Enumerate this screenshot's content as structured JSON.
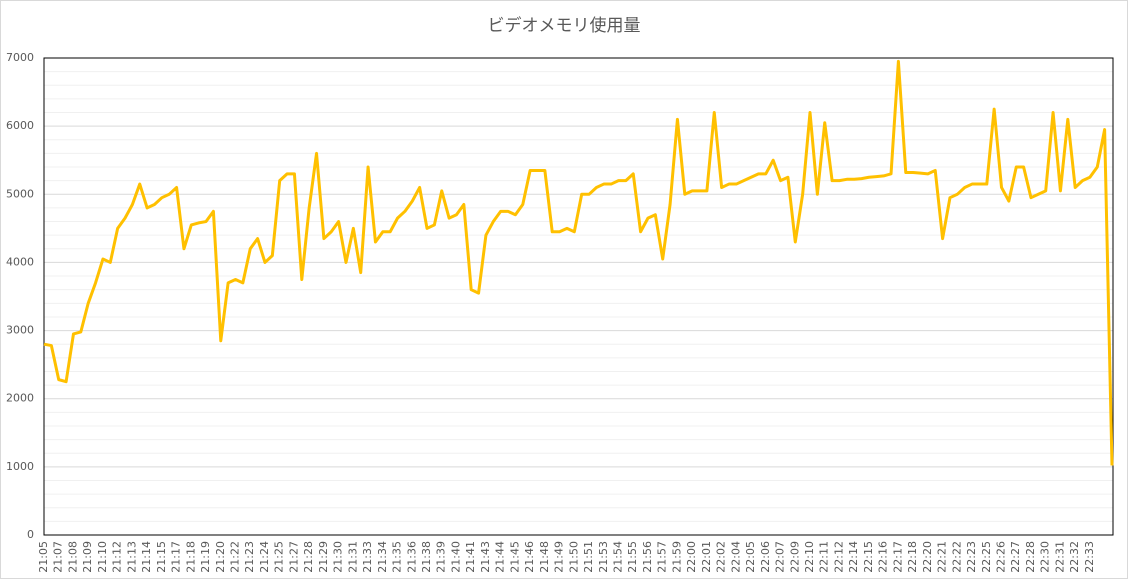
{
  "chart_data": {
    "type": "line",
    "title": "ビデオメモリ使用量",
    "categories": [
      "21:05",
      null,
      "21:07",
      null,
      "21:08",
      null,
      "21:09",
      null,
      "21:10",
      null,
      "21:12",
      null,
      "21:13",
      null,
      "21:14",
      null,
      "21:15",
      null,
      "21:17",
      null,
      "21:18",
      null,
      "21:19",
      null,
      "21:20",
      null,
      "21:22",
      null,
      "21:23",
      null,
      "21:24",
      null,
      "21:25",
      null,
      "21:27",
      null,
      "21:28",
      null,
      "21:29",
      null,
      "21:30",
      null,
      "21:31",
      null,
      "21:33",
      null,
      "21:34",
      null,
      "21:35",
      null,
      "21:36",
      null,
      "21:38",
      null,
      "21:39",
      null,
      "21:40",
      null,
      "21:41",
      null,
      "21:43",
      null,
      "21:44",
      null,
      "21:45",
      null,
      "21:46",
      null,
      "21:48",
      null,
      "21:49",
      null,
      "21:50",
      null,
      "21:51",
      null,
      "21:53",
      null,
      "21:54",
      null,
      "21:55",
      null,
      "21:56",
      null,
      "21:57",
      null,
      "21:59",
      null,
      "22:00",
      null,
      "22:01",
      null,
      "22:02",
      null,
      "22:04",
      null,
      "22:05",
      null,
      "22:06",
      null,
      "22:07",
      null,
      "22:09",
      null,
      "22:10",
      null,
      "22:11",
      null,
      "22:12",
      null,
      "22:14",
      null,
      "22:15",
      null,
      "22:16",
      null,
      "22:17",
      null,
      "22:18",
      null,
      "22:20",
      null,
      "22:21",
      null,
      "22:22",
      null,
      "22:23",
      null,
      "22:25",
      null,
      "22:26",
      null,
      "22:27",
      null,
      "22:28",
      null,
      "22:30",
      null,
      "22:31",
      null,
      "22:32",
      null,
      "22:33",
      null,
      null,
      null
    ],
    "series": [
      {
        "color": "#ffc000",
        "values": [
          2800,
          2780,
          2280,
          2250,
          2950,
          2980,
          3400,
          3700,
          4050,
          4000,
          4500,
          4650,
          4850,
          5150,
          4800,
          4850,
          4950,
          5000,
          5100,
          4200,
          4550,
          4580,
          4600,
          4750,
          2850,
          3700,
          3750,
          3700,
          4200,
          4350,
          4000,
          4100,
          5200,
          5300,
          5300,
          3750,
          4800,
          5600,
          4350,
          4450,
          4600,
          4000,
          4500,
          3850,
          5400,
          4300,
          4450,
          4450,
          4650,
          4750,
          4900,
          5100,
          4500,
          4550,
          5050,
          4650,
          4700,
          4850,
          3600,
          3550,
          4400,
          4600,
          4750,
          4750,
          4700,
          4850,
          5350,
          5350,
          5350,
          4450,
          4450,
          4500,
          4450,
          5000,
          5000,
          5100,
          5150,
          5150,
          5200,
          5200,
          5300,
          4450,
          4650,
          4700,
          4050,
          4850,
          6100,
          5000,
          5050,
          5050,
          5050,
          6200,
          5100,
          5150,
          5150,
          5200,
          5250,
          5300,
          5300,
          5500,
          5200,
          5250,
          4300,
          5000,
          6200,
          5000,
          6050,
          5200,
          5200,
          5220,
          5220,
          5230,
          5250,
          5260,
          5270,
          5300,
          6950,
          5320,
          5320,
          5310,
          5300,
          5350,
          4350,
          4950,
          5000,
          5100,
          5150,
          5150,
          5150,
          6250,
          5100,
          4900,
          5400,
          5400,
          4950,
          5000,
          5050,
          6200,
          5050,
          6100,
          5100,
          5200,
          5250,
          5400,
          5950,
          1020
        ]
      }
    ],
    "ylim": [
      0,
      7000
    ],
    "yticks": [
      0,
      1000,
      2000,
      3000,
      4000,
      5000,
      6000,
      7000
    ],
    "minor_yticks": [
      200,
      400,
      600,
      800,
      1200,
      1400,
      1600,
      1800,
      2200,
      2400,
      2600,
      2800,
      3200,
      3400,
      3600,
      3800,
      4200,
      4400,
      4600,
      4800,
      5200,
      5400,
      5600,
      5800,
      6200,
      6400,
      6600,
      6800
    ],
    "grid": true
  }
}
